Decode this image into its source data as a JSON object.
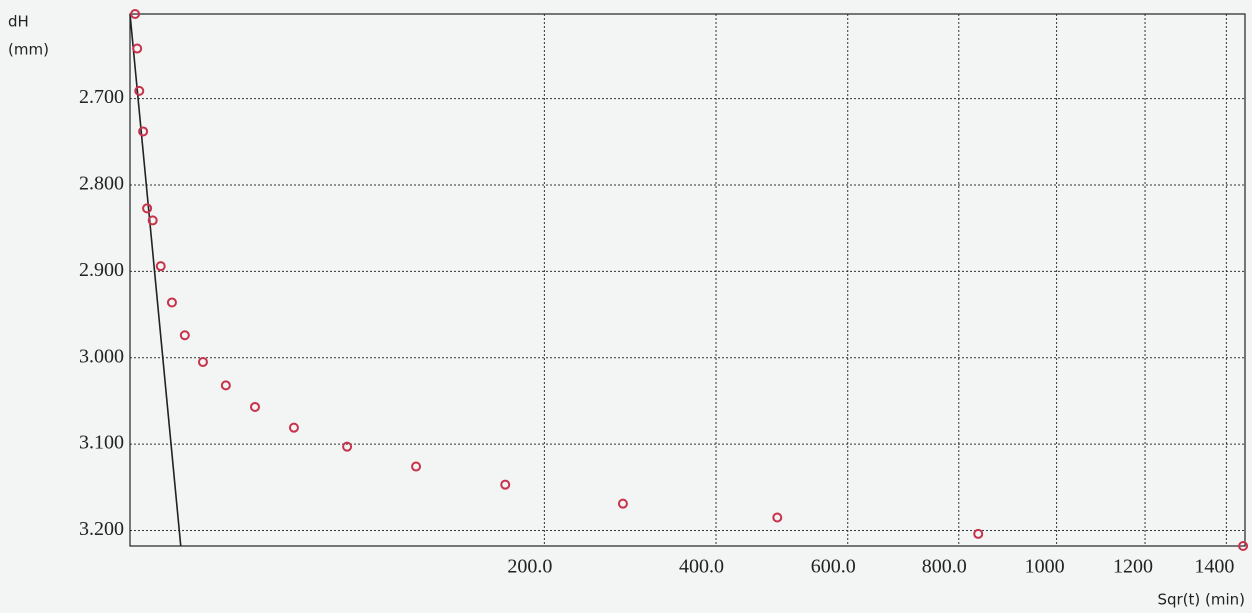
{
  "chart_data": {
    "type": "scatter",
    "y_label_line1": "dH",
    "y_label_line2": "(mm)",
    "x_label": "Sqr(t) (min)",
    "xscale": "sqrt",
    "yinverted": true,
    "grid": true,
    "xlim": [
      0,
      1448
    ],
    "ylim": [
      2.602,
      3.218
    ],
    "xticks": [
      {
        "value": 200,
        "label": "200.0"
      },
      {
        "value": 400,
        "label": "400.0"
      },
      {
        "value": 600,
        "label": "600.0"
      },
      {
        "value": 800,
        "label": "800.0"
      },
      1000,
      1200,
      1400
    ],
    "yticks": [
      {
        "value": 2.7,
        "label": "2.700"
      },
      {
        "value": 2.8,
        "label": "2.800"
      },
      {
        "value": 2.9,
        "label": "2.900"
      },
      {
        "value": 3.0,
        "label": "3.000"
      },
      {
        "value": 3.1,
        "label": "3.100"
      },
      {
        "value": 3.2,
        "label": "3.200"
      }
    ],
    "series": [
      {
        "color": "#c8324a",
        "x": [
          0.03,
          0.06,
          0.1,
          0.2,
          0.34,
          0.6,
          1.1,
          2.05,
          3.5,
          6.2,
          10.7,
          18.2,
          31.3,
          54.9,
          95.3,
          164,
          283,
          488,
          838,
          1443
        ],
        "values": [
          2.602,
          2.642,
          2.691,
          2.738,
          2.827,
          2.841,
          2.894,
          2.936,
          2.974,
          3.005,
          3.032,
          3.057,
          3.081,
          3.103,
          3.126,
          3.147,
          3.169,
          3.185,
          3.204,
          3.218
        ]
      }
    ],
    "fit_line": {
      "color": "#222222",
      "x": [
        0,
        3.0
      ],
      "values": [
        2.602,
        3.218
      ]
    }
  }
}
